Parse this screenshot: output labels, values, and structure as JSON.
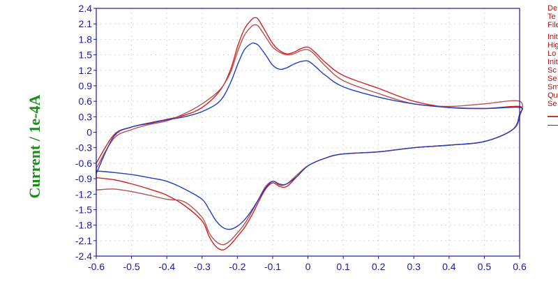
{
  "colors": {
    "axis": "#1a1aa0",
    "ylabel": "#1a8c1a",
    "info": "#b01010",
    "grid": "#c8c8c8"
  },
  "info_panel": {
    "header": [
      "De",
      "Te",
      "File"
    ],
    "params": [
      "Init",
      "Hig",
      "Lo",
      "Init",
      "Sc",
      "Se",
      "Sm",
      "Qu",
      "Se"
    ],
    "legend_colors": [
      "#c0392b",
      "#1f3fbf"
    ]
  },
  "chart_data": {
    "type": "line",
    "title": "",
    "xlabel": "",
    "ylabel": "Current / 1e-4A",
    "xlim": [
      -0.6,
      0.6
    ],
    "ylim": [
      -2.4,
      2.4
    ],
    "x_ticks": [
      "-0.6",
      "-0.5",
      "-0.4",
      "-0.3",
      "-0.2",
      "-0.1",
      "0",
      "0.1",
      "0.2",
      "0.3",
      "0.4",
      "0.5",
      "0.6"
    ],
    "y_ticks": [
      "2.4",
      "2.1",
      "1.8",
      "1.5",
      "1.2",
      "0.9",
      "0.6",
      "0.3",
      "0",
      "-0.3",
      "-0.6",
      "-0.9",
      "-1.2",
      "-1.5",
      "-1.8",
      "-2.1",
      "-2.4"
    ],
    "grid": true,
    "series": [
      {
        "color": "#d42020",
        "x": [
          -0.6,
          -0.55,
          -0.5,
          -0.45,
          -0.4,
          -0.35,
          -0.3,
          -0.25,
          -0.22,
          -0.2,
          -0.18,
          -0.16,
          -0.15,
          -0.14,
          -0.12,
          -0.1,
          -0.08,
          -0.06,
          -0.04,
          -0.02,
          0.0,
          0.02,
          0.05,
          0.1,
          0.2,
          0.3,
          0.4,
          0.5,
          0.6,
          0.6,
          0.58,
          0.5,
          0.4,
          0.3,
          0.2,
          0.1,
          0.05,
          0.0,
          -0.03,
          -0.06,
          -0.08,
          -0.1,
          -0.12,
          -0.14,
          -0.16,
          -0.18,
          -0.2,
          -0.22,
          -0.24,
          -0.26,
          -0.28,
          -0.3,
          -0.35,
          -0.4,
          -0.45,
          -0.5,
          -0.55,
          -0.6
        ],
        "y": [
          -0.6,
          -0.05,
          0.1,
          0.18,
          0.25,
          0.33,
          0.48,
          0.8,
          1.2,
          1.65,
          2.0,
          2.18,
          2.22,
          2.18,
          1.95,
          1.72,
          1.58,
          1.52,
          1.55,
          1.62,
          1.65,
          1.55,
          1.35,
          1.1,
          0.85,
          0.6,
          0.48,
          0.46,
          0.5,
          0.35,
          0.05,
          -0.18,
          -0.25,
          -0.3,
          -0.38,
          -0.42,
          -0.5,
          -0.65,
          -0.85,
          -1.05,
          -1.05,
          -0.98,
          -1.1,
          -1.35,
          -1.62,
          -1.85,
          -2.02,
          -2.18,
          -2.28,
          -2.22,
          -2.02,
          -1.72,
          -1.42,
          -1.22,
          -1.1,
          -1.0,
          -0.92,
          -0.88
        ]
      },
      {
        "color": "#b85050",
        "x": [
          -0.6,
          -0.55,
          -0.5,
          -0.45,
          -0.4,
          -0.35,
          -0.3,
          -0.25,
          -0.22,
          -0.2,
          -0.18,
          -0.16,
          -0.15,
          -0.14,
          -0.12,
          -0.1,
          -0.08,
          -0.06,
          -0.04,
          -0.02,
          0.0,
          0.02,
          0.05,
          0.1,
          0.2,
          0.3,
          0.4,
          0.5,
          0.6,
          0.6,
          0.58,
          0.5,
          0.4,
          0.3,
          0.2,
          0.1,
          0.05,
          0.0,
          -0.03,
          -0.06,
          -0.08,
          -0.1,
          -0.12,
          -0.14,
          -0.16,
          -0.18,
          -0.2,
          -0.22,
          -0.24,
          -0.26,
          -0.28,
          -0.3,
          -0.35,
          -0.4,
          -0.45,
          -0.5,
          -0.55,
          -0.6
        ],
        "y": [
          -0.7,
          -0.12,
          0.05,
          0.15,
          0.22,
          0.36,
          0.55,
          0.82,
          1.15,
          1.55,
          1.88,
          2.05,
          2.08,
          2.05,
          1.85,
          1.65,
          1.55,
          1.5,
          1.52,
          1.58,
          1.6,
          1.5,
          1.28,
          1.0,
          0.75,
          0.55,
          0.5,
          0.55,
          0.6,
          0.3,
          0.05,
          -0.18,
          -0.25,
          -0.3,
          -0.38,
          -0.42,
          -0.5,
          -0.65,
          -0.82,
          -1.0,
          -1.0,
          -0.95,
          -1.05,
          -1.3,
          -1.55,
          -1.78,
          -1.95,
          -2.1,
          -2.18,
          -2.12,
          -1.95,
          -1.65,
          -1.35,
          -1.3,
          -1.22,
          -1.15,
          -1.1,
          -1.12
        ]
      },
      {
        "color": "#1f3fbf",
        "x": [
          -0.6,
          -0.55,
          -0.5,
          -0.45,
          -0.4,
          -0.35,
          -0.3,
          -0.25,
          -0.22,
          -0.2,
          -0.18,
          -0.16,
          -0.15,
          -0.14,
          -0.12,
          -0.1,
          -0.08,
          -0.06,
          -0.04,
          -0.02,
          0.0,
          0.02,
          0.05,
          0.1,
          0.2,
          0.3,
          0.4,
          0.5,
          0.6,
          0.6,
          0.58,
          0.5,
          0.4,
          0.3,
          0.2,
          0.1,
          0.05,
          0.0,
          -0.03,
          -0.06,
          -0.08,
          -0.1,
          -0.12,
          -0.14,
          -0.16,
          -0.18,
          -0.2,
          -0.22,
          -0.24,
          -0.26,
          -0.28,
          -0.3,
          -0.35,
          -0.4,
          -0.45,
          -0.5,
          -0.55,
          -0.6
        ],
        "y": [
          -0.8,
          -0.08,
          0.1,
          0.17,
          0.24,
          0.3,
          0.4,
          0.6,
          0.95,
          1.3,
          1.6,
          1.72,
          1.72,
          1.68,
          1.5,
          1.3,
          1.22,
          1.25,
          1.32,
          1.37,
          1.38,
          1.28,
          1.1,
          0.88,
          0.68,
          0.55,
          0.48,
          0.46,
          0.48,
          0.35,
          0.05,
          -0.18,
          -0.25,
          -0.3,
          -0.38,
          -0.42,
          -0.5,
          -0.65,
          -0.85,
          -1.0,
          -1.02,
          -0.95,
          -1.08,
          -1.3,
          -1.52,
          -1.7,
          -1.82,
          -1.88,
          -1.85,
          -1.72,
          -1.5,
          -1.3,
          -1.1,
          -0.95,
          -0.88,
          -0.82,
          -0.78,
          -0.75
        ]
      }
    ]
  }
}
